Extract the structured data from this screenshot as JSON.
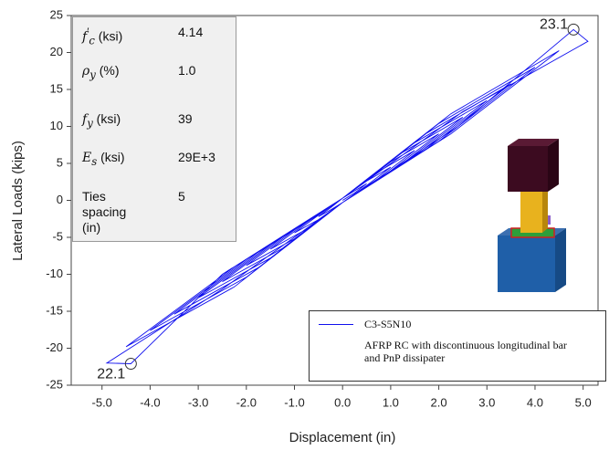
{
  "chart_data": {
    "type": "line",
    "x_label": "Displacement (in)",
    "y_label": "Lateral Loads (kips)",
    "xlim": [
      -5.64,
      5.31
    ],
    "ylim": [
      -25,
      25
    ],
    "xticks": [
      {
        "value": -5,
        "label": "-5.0"
      },
      {
        "value": -4,
        "label": "-4.0"
      },
      {
        "value": -3,
        "label": "-3.0"
      },
      {
        "value": -2,
        "label": "-2.0"
      },
      {
        "value": -1,
        "label": "-1.0"
      },
      {
        "value": 0,
        "label": "0.0"
      },
      {
        "value": 1,
        "label": "1.0"
      },
      {
        "value": 2,
        "label": "2.0"
      },
      {
        "value": 3,
        "label": "3.0"
      },
      {
        "value": 4,
        "label": "4.0"
      },
      {
        "value": 5,
        "label": "5.0"
      }
    ],
    "yticks": [
      25,
      20,
      15,
      10,
      5,
      0,
      -5,
      -10,
      -15,
      -20,
      -25
    ],
    "grid": false,
    "x": [
      0,
      0.25,
      0.5,
      0.25,
      0,
      -0.25,
      -0.5,
      -0.25,
      0,
      0.5,
      1,
      0.5,
      0,
      -0.5,
      -1,
      -0.5,
      0,
      0.75,
      1.5,
      0.75,
      0,
      -0.75,
      -1.5,
      -0.75,
      0,
      1,
      2,
      1,
      0,
      -1,
      -2,
      -1,
      0,
      1.25,
      2.5,
      1.25,
      0,
      -1.25,
      -2.5,
      -1.25,
      0,
      1.5,
      3,
      1.5,
      0,
      -1.5,
      -3,
      -1.5,
      0,
      1.75,
      3.5,
      1.75,
      0,
      -1.75,
      -3.5,
      -1.75,
      0,
      2,
      4,
      2,
      0,
      -2,
      -4,
      -2,
      0,
      2.25,
      4.5,
      2.25,
      0,
      -2.25,
      -4.5,
      -2.25,
      0,
      2.4,
      4.8,
      5.1,
      2.5,
      0,
      -2.5,
      -4.4,
      -4.9,
      -2.5,
      0
    ],
    "series": [
      {
        "name": "C3-S5N10",
        "color": "#1010ee",
        "values": [
          0,
          1.0,
          2.25,
          1.3,
          0.3,
          -1.0,
          -2.2,
          -1.3,
          -0.3,
          2.0,
          4.5,
          2.6,
          0.3,
          -2.0,
          -4.4,
          -2.6,
          -0.3,
          3.0,
          6.75,
          3.9,
          0.3,
          -3.0,
          -6.6,
          -3.9,
          -0.3,
          4,
          9,
          5.2,
          0.3,
          -4,
          -8.8,
          -5.2,
          -0.3,
          5,
          11.25,
          6.5,
          0.3,
          -5,
          -11,
          -6.5,
          -0.3,
          6,
          13.5,
          7.8,
          0.3,
          -6,
          -13.2,
          -7.8,
          -0.3,
          7,
          15.75,
          9.1,
          0.3,
          -7,
          -15.4,
          -9.1,
          -0.3,
          8,
          18,
          10.4,
          0.3,
          -8,
          -17.6,
          -10.4,
          -0.3,
          9,
          20.25,
          11.7,
          0.3,
          -9,
          -19.8,
          -11.7,
          -0.3,
          10,
          23.1,
          21.5,
          12,
          0.3,
          -10,
          -22.1,
          -22,
          -12,
          -0.3
        ]
      }
    ],
    "legend_note": "AFRP RC with discontinuous longitudinal bar and PnP dissipater",
    "annotations": [
      {
        "x": 4.8,
        "y": 23.1,
        "label": "23.1"
      },
      {
        "x": -4.4,
        "y": -22.1,
        "label": "22.1"
      }
    ],
    "parameters": [
      {
        "symbol": "f",
        "prime": "′",
        "sub": "c",
        "unit": "(ksi)",
        "value": "4.14"
      },
      {
        "symbol": "ρ",
        "sub": "y",
        "unit": "(%)",
        "value": "1.0"
      },
      {
        "symbol": "f",
        "sub": "y",
        "unit": "(ksi)",
        "value": "39"
      },
      {
        "symbol": "E",
        "sub": "s",
        "unit": "(ksi)",
        "value": "29E+3"
      },
      {
        "label": "Ties spacing (in)",
        "value": "5"
      }
    ]
  }
}
